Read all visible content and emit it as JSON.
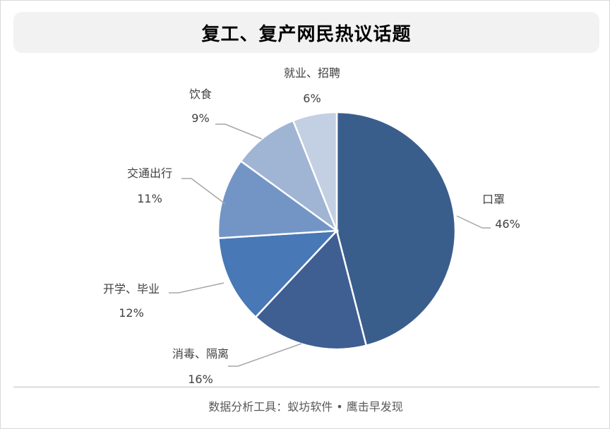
{
  "header": {
    "title": "复工、复产网民热议话题"
  },
  "footer": {
    "source": "数据分析工具：蚁坊软件 • 鹰击早发现"
  },
  "chart_data": {
    "type": "pie",
    "title": "复工、复产网民热议话题",
    "start_angle": "12 o'clock",
    "direction": "clockwise",
    "slices": [
      {
        "label": "口罩",
        "value": 46,
        "value_label": "46%",
        "color": "#3a5e8c"
      },
      {
        "label": "消毒、隔离",
        "value": 16,
        "value_label": "16%",
        "color": "#3f5f92"
      },
      {
        "label": "开学、毕业",
        "value": 12,
        "value_label": "12%",
        "color": "#4878b5"
      },
      {
        "label": "交通出行",
        "value": 11,
        "value_label": "11%",
        "color": "#7395c6"
      },
      {
        "label": "饮食",
        "value": 9,
        "value_label": "9%",
        "color": "#a0b4d4"
      },
      {
        "label": "就业、招聘",
        "value": 6,
        "value_label": "6%",
        "color": "#c3cfe2"
      }
    ],
    "leader_line_color": "#a6a6a6"
  }
}
